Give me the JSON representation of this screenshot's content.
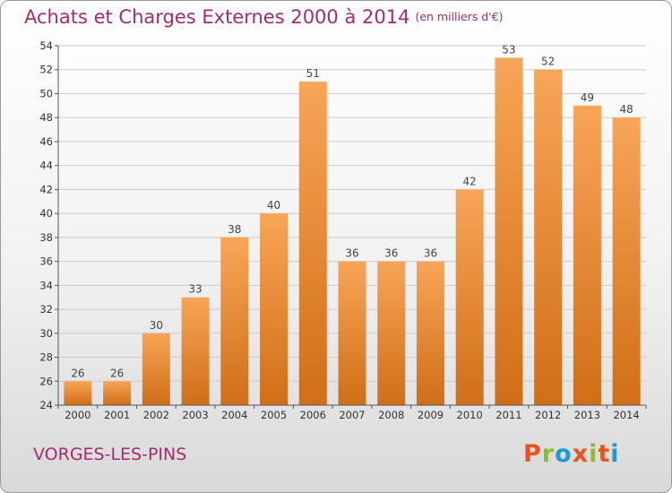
{
  "header": {
    "title": "Achats et Charges Externes 2000 à 2014",
    "unit": "(en milliers d'€)"
  },
  "footer": {
    "commune": "VORGES-LES-PINS",
    "logo": "Proxiti",
    "logo_colors": [
      "#e9541d",
      "#8bbf26",
      "#1c9ad6",
      "#e9541d",
      "#8bbf26",
      "#e9541d",
      "#1c9ad6"
    ]
  },
  "colors": {
    "title": "#a02d6e",
    "bar_light": "#f8a557",
    "bar_dark": "#d06e17",
    "grid": "#cccccc"
  },
  "chart_data": {
    "type": "bar",
    "title": "Achats et Charges Externes 2000 à 2014",
    "subtitle": "(en milliers d'€)",
    "xlabel": "",
    "ylabel": "",
    "categories": [
      "2000",
      "2001",
      "2002",
      "2003",
      "2004",
      "2005",
      "2006",
      "2007",
      "2008",
      "2009",
      "2010",
      "2011",
      "2012",
      "2013",
      "2014"
    ],
    "values": [
      26,
      26,
      30,
      33,
      38,
      40,
      51,
      36,
      36,
      36,
      42,
      53,
      52,
      49,
      48
    ],
    "ylim": [
      24,
      54
    ],
    "yticks": [
      24,
      26,
      28,
      30,
      32,
      34,
      36,
      38,
      40,
      42,
      44,
      46,
      48,
      50,
      52,
      54
    ],
    "grid": true,
    "data_labels": true
  }
}
